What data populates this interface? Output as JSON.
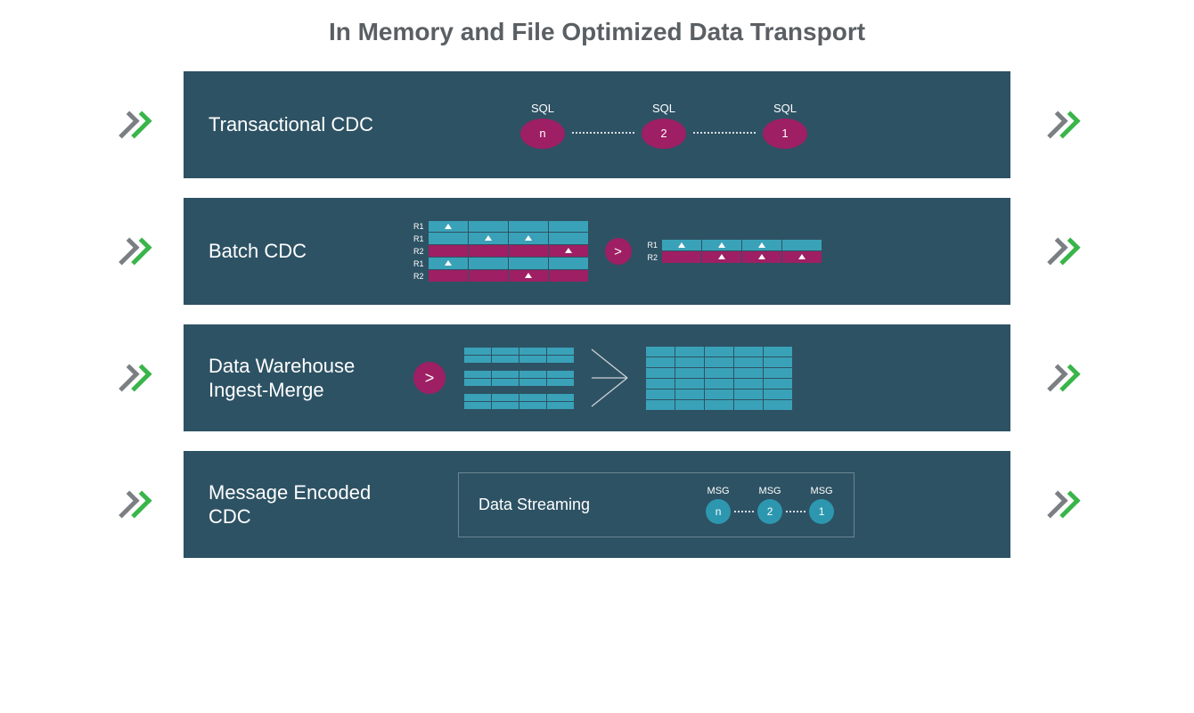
{
  "title": "In Memory and File Optimized Data Transport",
  "colors": {
    "title": "#5a5f63",
    "panel_bg": "#2d5264",
    "accent_magenta": "#9e1f63",
    "accent_teal": "#2d97b0",
    "chevron_gray": "#7b7f83",
    "chevron_green": "#39b54a",
    "cell_teal": "#3aa2b8",
    "cell_magenta": "#9e1f63",
    "white": "#ffffff"
  },
  "rows": [
    {
      "label": "Transactional CDC",
      "sql_nodes": [
        {
          "top": "SQL",
          "val": "n"
        },
        {
          "top": "SQL",
          "val": "2"
        },
        {
          "top": "SQL",
          "val": "1"
        }
      ]
    },
    {
      "label": "Batch CDC",
      "left_table": {
        "row_labels": [
          "R1",
          "R1",
          "R2",
          "R1",
          "R2"
        ],
        "row_colors": [
          "teal",
          "teal",
          "magenta",
          "teal",
          "magenta"
        ],
        "markers": [
          [
            0
          ],
          [
            1,
            2
          ],
          [
            3
          ],
          [
            0
          ],
          [
            2
          ]
        ]
      },
      "right_table": {
        "row_labels": [
          "R1",
          "R2"
        ],
        "row_colors": [
          "teal",
          "magenta"
        ],
        "markers": [
          [
            0,
            1,
            2
          ],
          [
            1,
            2,
            3
          ]
        ]
      }
    },
    {
      "label": "Data Warehouse Ingest-Merge"
    },
    {
      "label": "Message Encoded CDC",
      "stream_label": "Data Streaming",
      "msg_nodes": [
        {
          "top": "MSG",
          "val": "n"
        },
        {
          "top": "MSG",
          "val": "2"
        },
        {
          "top": "MSG",
          "val": "1"
        }
      ]
    }
  ]
}
